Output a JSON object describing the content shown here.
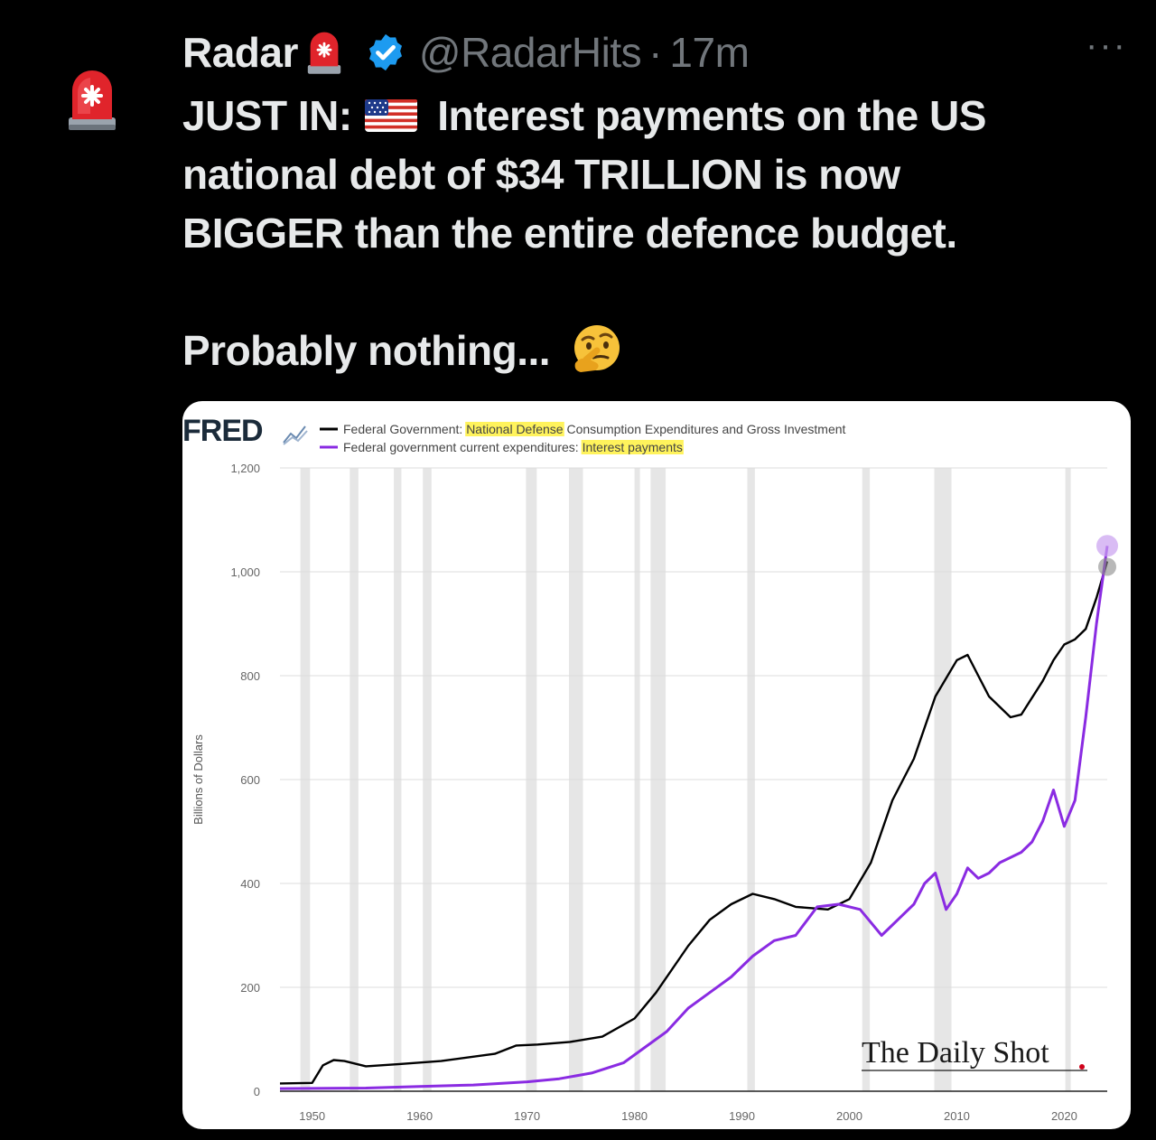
{
  "tweet": {
    "author_name": "Radar",
    "handle": "@RadarHits",
    "separator": "·",
    "time": "17m",
    "more_label": "···",
    "line1_prefix": "JUST IN:",
    "line1_rest": "Interest payments on the US",
    "line2": "national debt of $34 TRILLION is now",
    "line3": "BIGGER than the entire defence budget.",
    "line4": "Probably nothing...",
    "icons": {
      "avatar": "rotating-light-icon",
      "name_emoji": "rotating-light-icon",
      "verified": "verified-badge-icon",
      "flag": "us-flag-icon",
      "thinking": "thinking-face-icon"
    },
    "colors": {
      "verified": "#1d9bf0",
      "muted": "#71767b",
      "text": "#e7e9ea"
    }
  },
  "chart_data": {
    "type": "line",
    "source_logo": "FRED",
    "watermark": "The Daily Shot",
    "ylabel": "Billions of Dollars",
    "ylim": [
      0,
      1200
    ],
    "xlim": [
      1947,
      2024
    ],
    "y_ticks": [
      "0",
      "200",
      "400",
      "600",
      "800",
      "1,000",
      "1,200"
    ],
    "x_ticks": [
      "1950",
      "1960",
      "1970",
      "1980",
      "1990",
      "2000",
      "2010",
      "2020"
    ],
    "grid": true,
    "recessions": [
      [
        1948.9,
        1949.8
      ],
      [
        1953.5,
        1954.3
      ],
      [
        1957.6,
        1958.3
      ],
      [
        1960.3,
        1961.1
      ],
      [
        1969.9,
        1970.9
      ],
      [
        1973.9,
        1975.2
      ],
      [
        1980.0,
        1980.5
      ],
      [
        1981.5,
        1982.9
      ],
      [
        1990.5,
        1991.2
      ],
      [
        2001.2,
        2001.9
      ],
      [
        2007.9,
        2009.5
      ],
      [
        2020.1,
        2020.4
      ]
    ],
    "series": [
      {
        "legend_prefix": "Federal Government:",
        "legend_highlight": "National Defense",
        "legend_suffix": "Consumption Expenditures and Gross Investment",
        "color": "#000000",
        "points": [
          [
            1947,
            15
          ],
          [
            1950,
            16
          ],
          [
            1951,
            50
          ],
          [
            1952,
            60
          ],
          [
            1953,
            58
          ],
          [
            1955,
            48
          ],
          [
            1958,
            52
          ],
          [
            1962,
            58
          ],
          [
            1967,
            72
          ],
          [
            1969,
            88
          ],
          [
            1971,
            90
          ],
          [
            1974,
            95
          ],
          [
            1977,
            105
          ],
          [
            1980,
            140
          ],
          [
            1982,
            190
          ],
          [
            1985,
            280
          ],
          [
            1987,
            330
          ],
          [
            1989,
            360
          ],
          [
            1991,
            380
          ],
          [
            1993,
            370
          ],
          [
            1995,
            355
          ],
          [
            1998,
            350
          ],
          [
            2000,
            370
          ],
          [
            2002,
            440
          ],
          [
            2004,
            560
          ],
          [
            2006,
            640
          ],
          [
            2008,
            760
          ],
          [
            2010,
            830
          ],
          [
            2011,
            840
          ],
          [
            2012,
            800
          ],
          [
            2013,
            760
          ],
          [
            2015,
            720
          ],
          [
            2016,
            725
          ],
          [
            2018,
            790
          ],
          [
            2019,
            830
          ],
          [
            2020,
            860
          ],
          [
            2021,
            870
          ],
          [
            2022,
            890
          ],
          [
            2023,
            950
          ],
          [
            2024,
            1020
          ]
        ]
      },
      {
        "legend_prefix": "Federal government current expenditures:",
        "legend_highlight": "Interest payments",
        "legend_suffix": "",
        "color": "#8a2be2",
        "points": [
          [
            1947,
            5
          ],
          [
            1955,
            6
          ],
          [
            1960,
            9
          ],
          [
            1965,
            12
          ],
          [
            1970,
            18
          ],
          [
            1973,
            24
          ],
          [
            1976,
            35
          ],
          [
            1979,
            55
          ],
          [
            1981,
            85
          ],
          [
            1983,
            115
          ],
          [
            1985,
            160
          ],
          [
            1987,
            190
          ],
          [
            1989,
            220
          ],
          [
            1991,
            260
          ],
          [
            1993,
            290
          ],
          [
            1995,
            300
          ],
          [
            1997,
            355
          ],
          [
            1999,
            360
          ],
          [
            2001,
            350
          ],
          [
            2003,
            300
          ],
          [
            2004,
            320
          ],
          [
            2006,
            360
          ],
          [
            2007,
            400
          ],
          [
            2008,
            420
          ],
          [
            2009,
            350
          ],
          [
            2010,
            380
          ],
          [
            2011,
            430
          ],
          [
            2012,
            410
          ],
          [
            2013,
            420
          ],
          [
            2014,
            440
          ],
          [
            2016,
            460
          ],
          [
            2017,
            480
          ],
          [
            2018,
            520
          ],
          [
            2019,
            580
          ],
          [
            2020,
            510
          ],
          [
            2021,
            560
          ],
          [
            2022,
            720
          ],
          [
            2023,
            900
          ],
          [
            2024,
            1050
          ]
        ]
      }
    ]
  }
}
